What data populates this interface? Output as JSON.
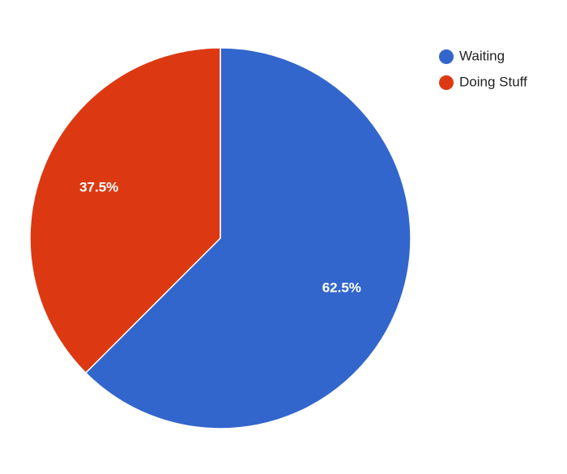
{
  "chart_data": {
    "type": "pie",
    "title": "",
    "slices": [
      {
        "name": "Waiting",
        "value": 62.5,
        "label": "62.5%",
        "color": "#3366cc"
      },
      {
        "name": "Doing Stuff",
        "value": 37.5,
        "label": "37.5%",
        "color": "#dc3912"
      }
    ],
    "start_angle_deg": 0,
    "direction": "clockwise",
    "legend_position": "right"
  }
}
